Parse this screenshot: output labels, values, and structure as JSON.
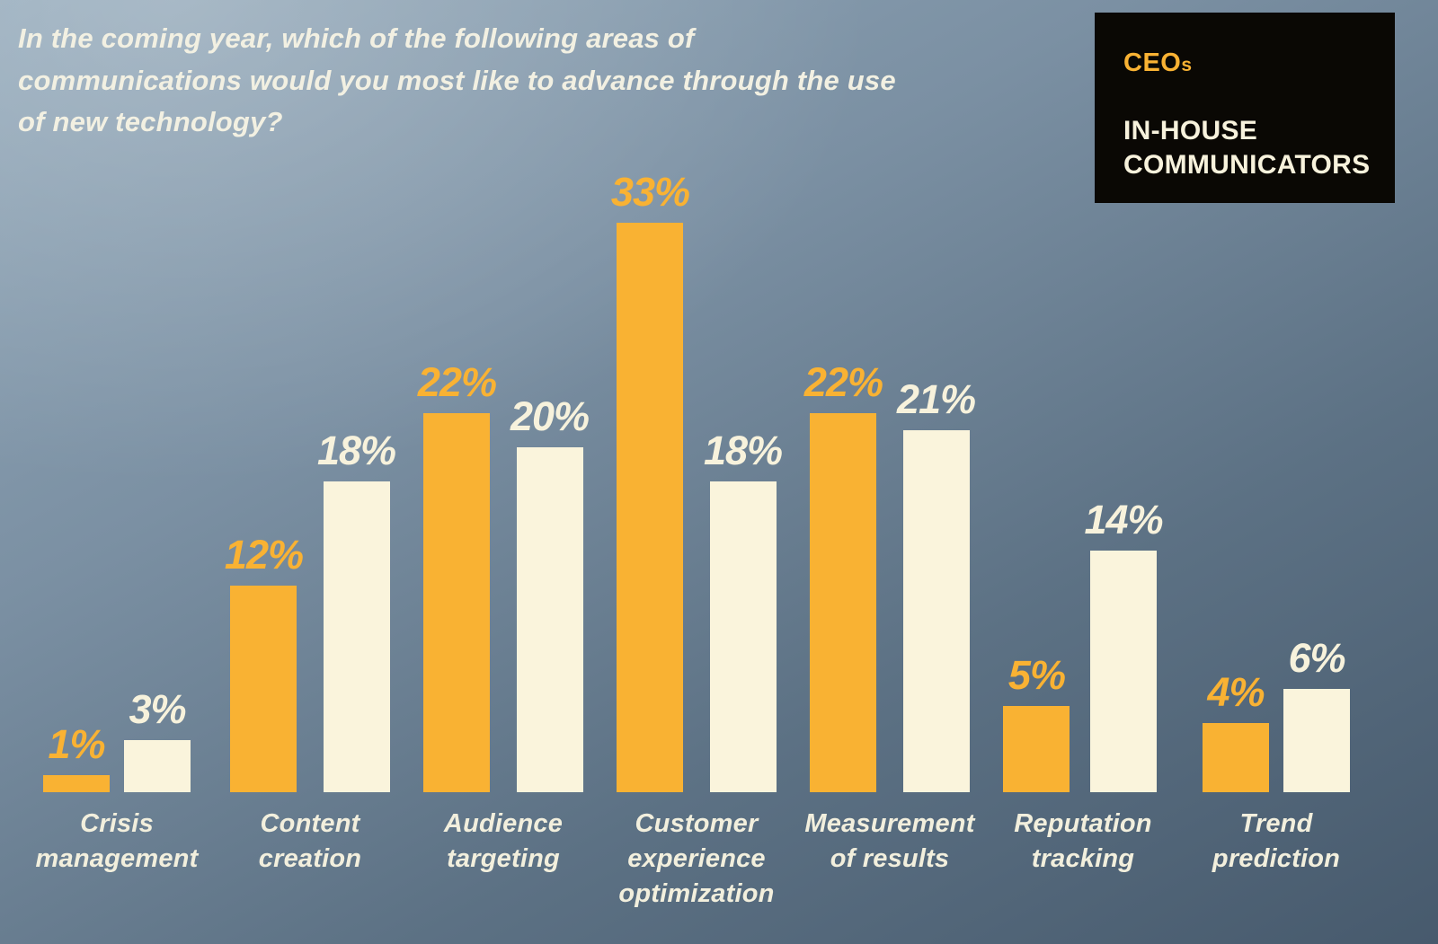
{
  "title": "In the coming year, which of the following areas of communications would you most like to advance through the use of new technology?",
  "legend": {
    "ceo_label": "CEO",
    "ceo_suffix": "s",
    "inhouse_label": "IN-HOUSE COMMUNICATORS"
  },
  "colors": {
    "ceo_bar": "#f9b233",
    "inhouse_bar": "#faf4dc",
    "legend_background": "#0a0804",
    "background_top": "#93a9ba",
    "background_bottom": "#475a6d",
    "title_text": "#f2f0e2"
  },
  "chart_data": {
    "type": "bar",
    "categories": [
      "Crisis management",
      "Content creation",
      "Audience targeting",
      "Customer experience optimization",
      "Measurement of results",
      "Reputation tracking",
      "Trend prediction"
    ],
    "series": [
      {
        "name": "CEOs",
        "color": "#f9b233",
        "values": [
          1,
          12,
          22,
          33,
          22,
          5,
          4
        ]
      },
      {
        "name": "In-house communicators",
        "color": "#faf4dc",
        "values": [
          3,
          18,
          20,
          18,
          21,
          14,
          6
        ]
      }
    ],
    "unit": "%",
    "ylim": [
      0,
      35
    ],
    "grid": false,
    "legend_position": "top-right",
    "data_labels": true
  }
}
